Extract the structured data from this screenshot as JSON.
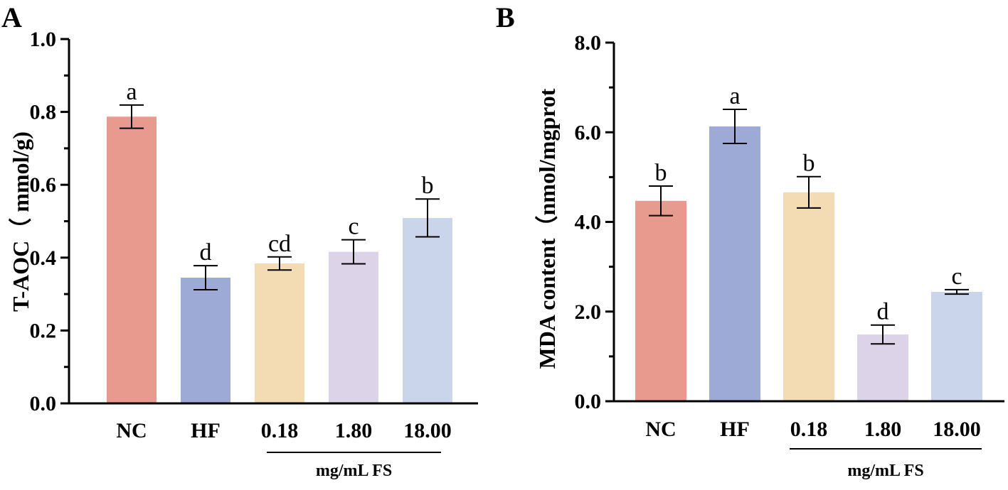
{
  "chart_data": [
    {
      "panel": "A",
      "type": "bar",
      "title": "",
      "xlabel": "",
      "ylabel": "T-AOC（ mmol/g)",
      "ylim": [
        0,
        1.0
      ],
      "yticks": [
        "0.0",
        "0.2",
        "0.4",
        "0.6",
        "0.8",
        "1.0"
      ],
      "tick_values": [
        0,
        0.2,
        0.4,
        0.6,
        0.8,
        1.0
      ],
      "categories": [
        "NC",
        "HF",
        "0.18",
        "1.80",
        "18.00"
      ],
      "values": [
        0.787,
        0.345,
        0.384,
        0.416,
        0.509
      ],
      "errors": [
        0.032,
        0.033,
        0.018,
        0.033,
        0.052
      ],
      "significance": [
        "a",
        "d",
        "cd",
        "c",
        "b"
      ],
      "colors": [
        "#e99a8f",
        "#9eaad6",
        "#f3dcb4",
        "#dcd3e8",
        "#cad5eb"
      ],
      "group_label": "mg/mL FS"
    },
    {
      "panel": "B",
      "type": "bar",
      "title": "",
      "xlabel": "",
      "ylabel": "MDA content（nmol/mgprot",
      "ylim": [
        0,
        8.0
      ],
      "yticks": [
        "0.0",
        "2.0",
        "4.0",
        "6.0",
        "8.0"
      ],
      "tick_values": [
        0,
        2,
        4,
        6,
        8
      ],
      "categories": [
        "NC",
        "HF",
        "0.18",
        "1.80",
        "18.00"
      ],
      "values": [
        4.47,
        6.13,
        4.66,
        1.49,
        2.44
      ],
      "errors": [
        0.33,
        0.38,
        0.35,
        0.21,
        0.05
      ],
      "significance": [
        "b",
        "a",
        "b",
        "d",
        "c"
      ],
      "colors": [
        "#e99a8f",
        "#9eaad6",
        "#f3dcb4",
        "#dcd3e8",
        "#cad5eb"
      ],
      "group_label": "mg/mL FS"
    }
  ],
  "panel_labels": [
    "A",
    "B"
  ]
}
